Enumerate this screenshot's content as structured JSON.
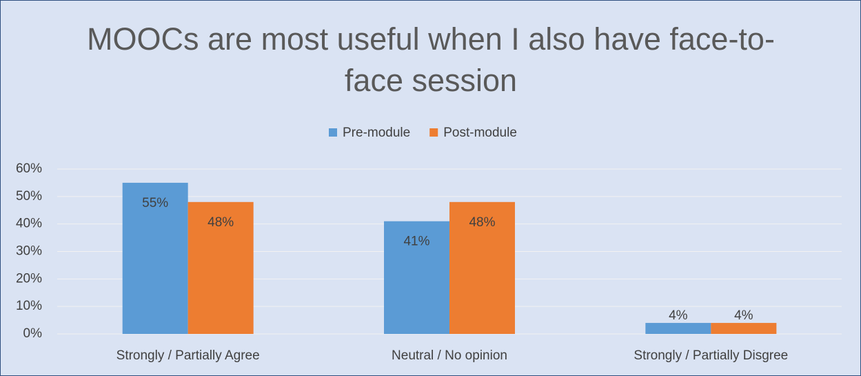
{
  "chart_data": {
    "type": "bar",
    "title": "MOOCs are most useful when I also have face-to-face session",
    "categories": [
      "Strongly / Partially Agree",
      "Neutral / No opinion",
      "Strongly / Partially Disgree"
    ],
    "series": [
      {
        "name": "Pre-module",
        "color": "#5b9bd5",
        "values": [
          55,
          41,
          4
        ],
        "value_labels": [
          "55%",
          "41%",
          "4%"
        ]
      },
      {
        "name": "Post-module",
        "color": "#ed7d31",
        "values": [
          48,
          48,
          4
        ],
        "value_labels": [
          "48%",
          "48%",
          "4%"
        ]
      }
    ],
    "ylim": [
      0,
      60
    ],
    "yticks": [
      {
        "value": 0,
        "label": "0%"
      },
      {
        "value": 10,
        "label": "10%"
      },
      {
        "value": 20,
        "label": "20%"
      },
      {
        "value": 30,
        "label": "30%"
      },
      {
        "value": 40,
        "label": "40%"
      },
      {
        "value": 50,
        "label": "50%"
      },
      {
        "value": 60,
        "label": "60%"
      }
    ],
    "grid": true,
    "legend": "top"
  }
}
